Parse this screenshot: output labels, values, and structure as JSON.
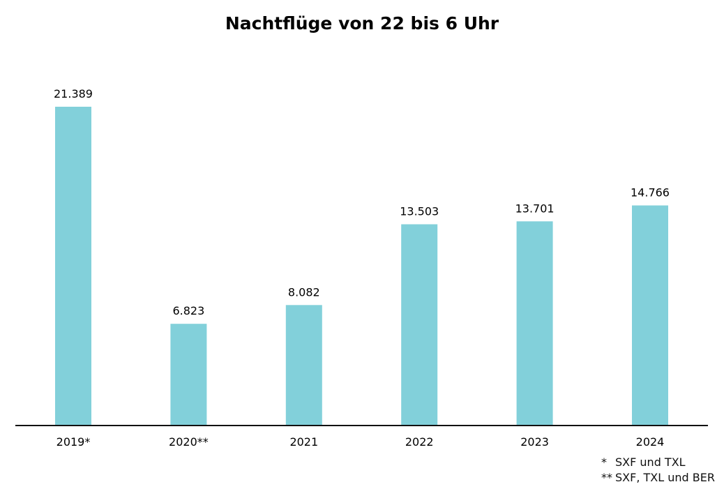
{
  "chart_data": {
    "type": "bar",
    "title": "Nachtflüge von 22 bis 6 Uhr",
    "categories": [
      "2019*",
      "2020**",
      "2021",
      "2022",
      "2023",
      "2024"
    ],
    "values": [
      21389,
      6823,
      8082,
      13503,
      13701,
      14766
    ],
    "value_labels": [
      "21.389",
      "6.823",
      "8.082",
      "13.503",
      "13.701",
      "14.766"
    ],
    "ylim": [
      0,
      21389
    ],
    "bar_color": "#82d0da",
    "axis_color": "#111111",
    "grid": false,
    "legend": "none"
  },
  "footnotes": [
    {
      "mark": "*",
      "text": "SXF und TXL"
    },
    {
      "mark": "**",
      "text": "SXF, TXL und BER"
    }
  ]
}
